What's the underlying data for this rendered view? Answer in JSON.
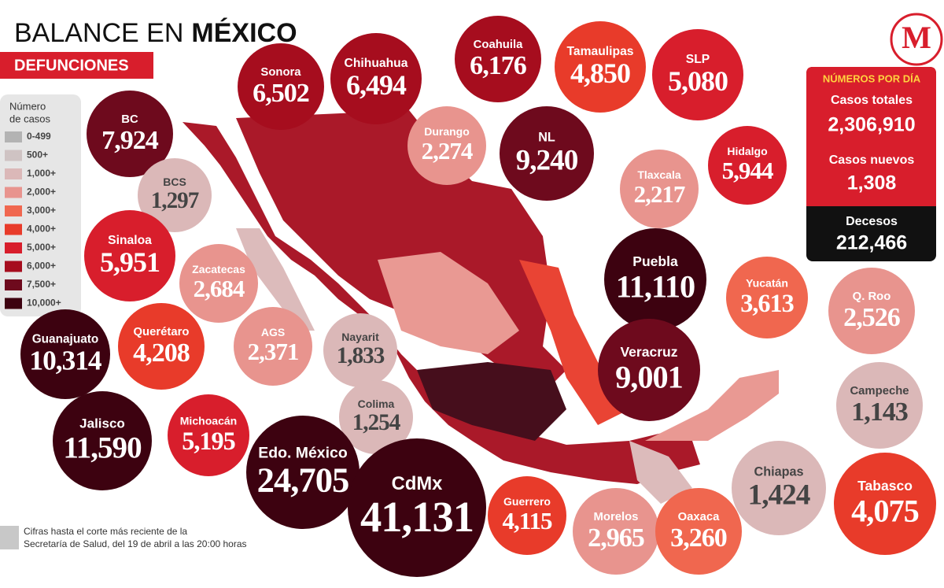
{
  "header": {
    "title_light": "BALANCE EN",
    "title_bold": "MÉXICO",
    "subtitle": "DEFUNCIONES",
    "logo": "M"
  },
  "legend": {
    "title_lines": [
      "Número",
      "de casos"
    ],
    "items": [
      {
        "label": "0-499",
        "color": "#b3b3b3"
      },
      {
        "label": "500+",
        "color": "#cfc3c3"
      },
      {
        "label": "1,000+",
        "color": "#dbb8b8"
      },
      {
        "label": "2,000+",
        "color": "#e8948e"
      },
      {
        "label": "3,000+",
        "color": "#f0674f"
      },
      {
        "label": "4,000+",
        "color": "#e83b2a"
      },
      {
        "label": "5,000+",
        "color": "#d81e2c"
      },
      {
        "label": "6,000+",
        "color": "#a60d1e"
      },
      {
        "label": "7,500+",
        "color": "#6e0a1d"
      },
      {
        "label": "10,000+",
        "color": "#3d0210"
      }
    ]
  },
  "daily": {
    "title": "NÚMEROS POR DÍA",
    "items": [
      {
        "label": "Casos totales",
        "value": "2,306,910"
      },
      {
        "label": "Casos nuevos",
        "value": "1,308"
      },
      {
        "label": "Decesos",
        "value": "212,466"
      }
    ]
  },
  "states": [
    {
      "name": "BC",
      "value": "7,924",
      "color": "#6e0a1d"
    },
    {
      "name": "Sonora",
      "value": "6,502",
      "color": "#a60d1e"
    },
    {
      "name": "Chihuahua",
      "value": "6,494",
      "color": "#a60d1e"
    },
    {
      "name": "Coahuila",
      "value": "6,176",
      "color": "#a60d1e"
    },
    {
      "name": "Tamaulipas",
      "value": "4,850",
      "color": "#e83b2a"
    },
    {
      "name": "SLP",
      "value": "5,080",
      "color": "#d81e2c"
    },
    {
      "name": "Durango",
      "value": "2,274",
      "color": "#e8948e"
    },
    {
      "name": "NL",
      "value": "9,240",
      "color": "#6e0a1d"
    },
    {
      "name": "BCS",
      "value": "1,297",
      "color": "#dbb8b8"
    },
    {
      "name": "Tlaxcala",
      "value": "2,217",
      "color": "#e8948e"
    },
    {
      "name": "Hidalgo",
      "value": "5,944",
      "color": "#d81e2c"
    },
    {
      "name": "Sinaloa",
      "value": "5,951",
      "color": "#d81e2c"
    },
    {
      "name": "Zacatecas",
      "value": "2,684",
      "color": "#e8948e"
    },
    {
      "name": "Puebla",
      "value": "11,110",
      "color": "#3d0210"
    },
    {
      "name": "Yucatán",
      "value": "3,613",
      "color": "#f0674f"
    },
    {
      "name": "Q. Roo",
      "value": "2,526",
      "color": "#e8948e"
    },
    {
      "name": "Guanajuato",
      "value": "10,314",
      "color": "#3d0210"
    },
    {
      "name": "Querétaro",
      "value": "4,208",
      "color": "#e83b2a"
    },
    {
      "name": "AGS",
      "value": "2,371",
      "color": "#e8948e"
    },
    {
      "name": "Nayarit",
      "value": "1,833",
      "color": "#dbb8b8"
    },
    {
      "name": "Veracruz",
      "value": "9,001",
      "color": "#6e0a1d"
    },
    {
      "name": "Campeche",
      "value": "1,143",
      "color": "#dbb8b8"
    },
    {
      "name": "Colima",
      "value": "1,254",
      "color": "#dbb8b8"
    },
    {
      "name": "Jalisco",
      "value": "11,590",
      "color": "#3d0210"
    },
    {
      "name": "Michoacán",
      "value": "5,195",
      "color": "#d81e2c"
    },
    {
      "name": "Edo. México",
      "value": "24,705",
      "color": "#3d0210"
    },
    {
      "name": "CdMx",
      "value": "41,131",
      "color": "#3d0210"
    },
    {
      "name": "Guerrero",
      "value": "4,115",
      "color": "#e83b2a"
    },
    {
      "name": "Chiapas",
      "value": "1,424",
      "color": "#dbb8b8"
    },
    {
      "name": "Tabasco",
      "value": "4,075",
      "color": "#e83b2a"
    },
    {
      "name": "Morelos",
      "value": "2,965",
      "color": "#e8948e"
    },
    {
      "name": "Oaxaca",
      "value": "3,260",
      "color": "#f0674f"
    }
  ],
  "footnote": {
    "lines": [
      "Cifras hasta el corte más reciente de la",
      "Secretaría de Salud, del 19 de abril a las 20:00 horas"
    ]
  }
}
